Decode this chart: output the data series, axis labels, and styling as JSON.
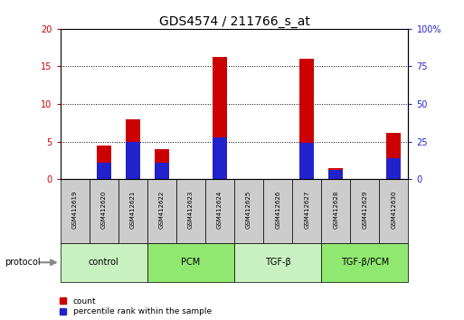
{
  "title": "GDS4574 / 211766_s_at",
  "samples": [
    "GSM412619",
    "GSM412620",
    "GSM412621",
    "GSM412622",
    "GSM412623",
    "GSM412624",
    "GSM412625",
    "GSM412626",
    "GSM412627",
    "GSM412628",
    "GSM412629",
    "GSM412630"
  ],
  "count_values": [
    0,
    4.5,
    8.0,
    4.0,
    0,
    16.3,
    0,
    0,
    16.0,
    1.5,
    0,
    6.2
  ],
  "percentile_values": [
    0,
    11,
    25,
    11,
    0,
    27.5,
    0,
    0,
    24,
    6,
    0,
    14
  ],
  "groups": [
    {
      "label": "control",
      "start": 0,
      "end": 3,
      "color": "#c8f0c0"
    },
    {
      "label": "PCM",
      "start": 3,
      "end": 6,
      "color": "#90e870"
    },
    {
      "label": "TGF-β",
      "start": 6,
      "end": 9,
      "color": "#c8f0c0"
    },
    {
      "label": "TGF-β/PCM",
      "start": 9,
      "end": 12,
      "color": "#90e870"
    }
  ],
  "ylim_left": [
    0,
    20
  ],
  "ylim_right": [
    0,
    100
  ],
  "yticks_left": [
    0,
    5,
    10,
    15,
    20
  ],
  "yticks_right": [
    0,
    25,
    50,
    75,
    100
  ],
  "ytick_labels_right": [
    "0",
    "25",
    "50",
    "75",
    "100%"
  ],
  "bar_color_count": "#cc0000",
  "bar_color_percentile": "#2222cc",
  "bar_width": 0.5,
  "grid_color": "black",
  "protocol_label": "protocol",
  "legend_count": "count",
  "legend_percentile": "percentile rank within the sample",
  "title_fontsize": 10,
  "axis_label_color_left": "#cc0000",
  "axis_label_color_right": "#2222cc",
  "sample_box_color": "#cccccc",
  "sample_text_color": "black"
}
